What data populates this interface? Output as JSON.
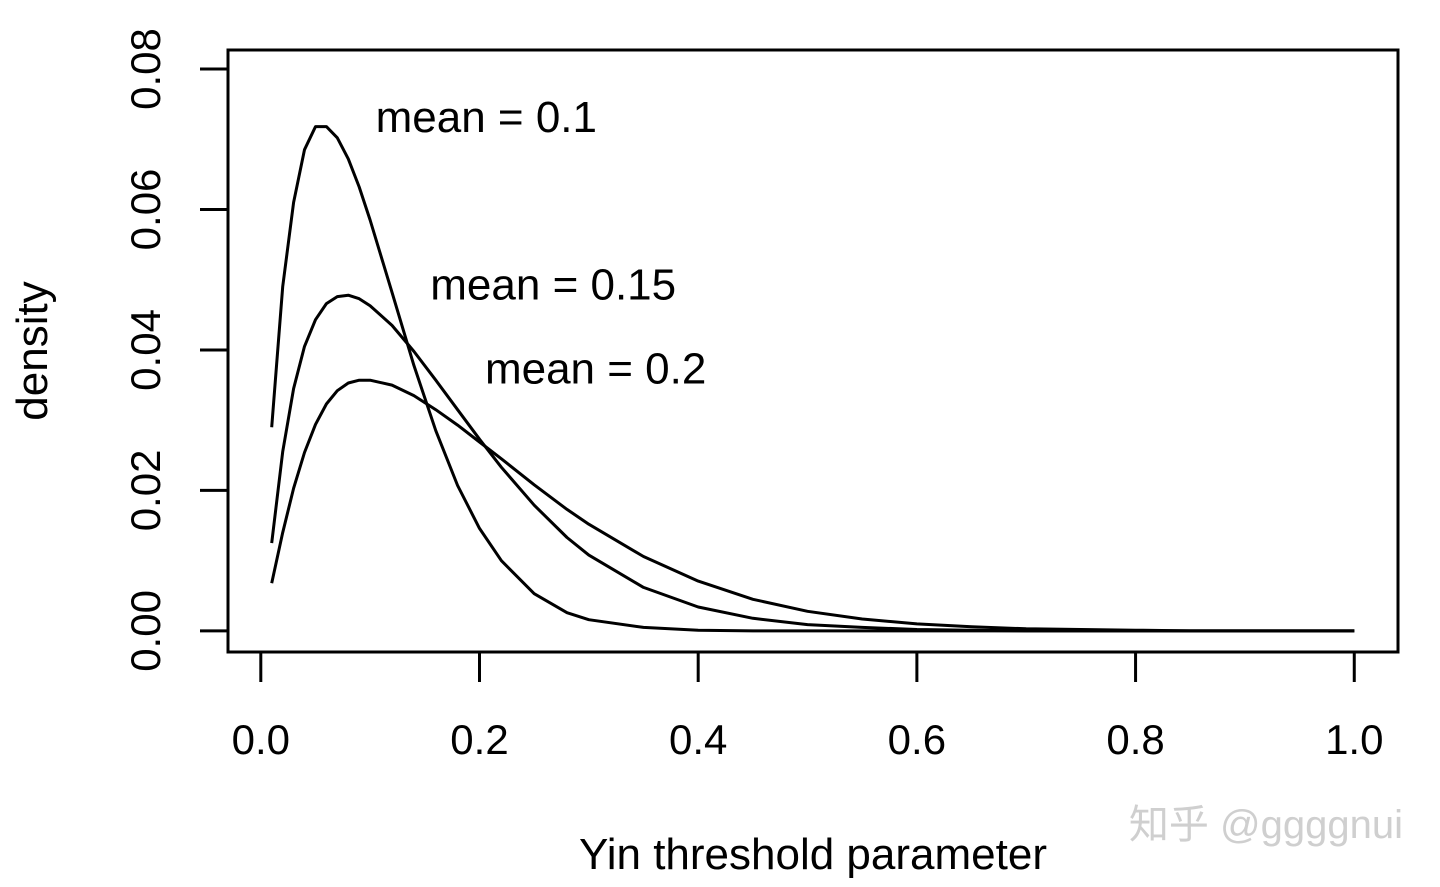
{
  "chart_data": {
    "type": "line",
    "title": "",
    "xlabel": "Yin threshold parameter",
    "ylabel": "density",
    "xlim": [
      -0.03,
      1.04
    ],
    "ylim": [
      -0.003,
      0.0827
    ],
    "xticks": [
      0.0,
      0.2,
      0.4,
      0.6,
      0.8,
      1.0
    ],
    "xtick_labels": [
      "0.0",
      "0.2",
      "0.4",
      "0.6",
      "0.8",
      "1.0"
    ],
    "yticks": [
      0.0,
      0.02,
      0.04,
      0.06,
      0.08
    ],
    "ytick_labels": [
      "0.00",
      "0.02",
      "0.04",
      "0.06",
      "0.08"
    ],
    "grid": false,
    "legend": "none",
    "x": [
      0.01,
      0.02,
      0.03,
      0.04,
      0.05,
      0.06,
      0.07,
      0.08,
      0.09,
      0.1,
      0.12,
      0.14,
      0.16,
      0.18,
      0.2,
      0.22,
      0.25,
      0.28,
      0.3,
      0.35,
      0.4,
      0.45,
      0.5,
      0.55,
      0.6,
      0.65,
      0.7,
      0.75,
      0.8,
      0.85,
      0.9,
      0.95,
      1.0
    ],
    "series": [
      {
        "values": [
          0.029,
          0.049,
          0.061,
          0.0685,
          0.0718,
          0.0718,
          0.0702,
          0.0672,
          0.0632,
          0.0585,
          0.0482,
          0.0378,
          0.0285,
          0.0207,
          0.0146,
          0.01,
          0.0053,
          0.0026,
          0.0016,
          0.0005,
          0.0001,
          0.0,
          0.0,
          0.0,
          0.0,
          0.0,
          0.0,
          0.0,
          0.0,
          0.0,
          0.0,
          0.0,
          0.0
        ]
      },
      {
        "values": [
          0.0125,
          0.0255,
          0.0345,
          0.0405,
          0.0443,
          0.0466,
          0.0476,
          0.0478,
          0.0473,
          0.0463,
          0.0435,
          0.0398,
          0.0357,
          0.0315,
          0.0273,
          0.0233,
          0.0179,
          0.0133,
          0.0108,
          0.0062,
          0.0034,
          0.0018,
          0.0009,
          0.0005,
          0.0002,
          0.0001,
          0.0,
          0.0,
          0.0,
          0.0,
          0.0,
          0.0,
          0.0
        ]
      },
      {
        "values": [
          0.0068,
          0.014,
          0.0203,
          0.0254,
          0.0294,
          0.0323,
          0.0342,
          0.0353,
          0.0357,
          0.0357,
          0.035,
          0.0335,
          0.0315,
          0.0293,
          0.0269,
          0.0245,
          0.0208,
          0.0173,
          0.0152,
          0.0106,
          0.0071,
          0.0045,
          0.0028,
          0.0017,
          0.001,
          0.0006,
          0.0003,
          0.0002,
          0.0001,
          0.0,
          0.0,
          0.0,
          0.0
        ]
      }
    ],
    "annotations": [
      {
        "text": "mean = 0.1",
        "x": 0.105,
        "y": 0.071
      },
      {
        "text": "mean = 0.15",
        "x": 0.155,
        "y": 0.0472
      },
      {
        "text": "mean = 0.2",
        "x": 0.205,
        "y": 0.0352
      }
    ]
  },
  "watermark": "知乎 @ggggnui"
}
